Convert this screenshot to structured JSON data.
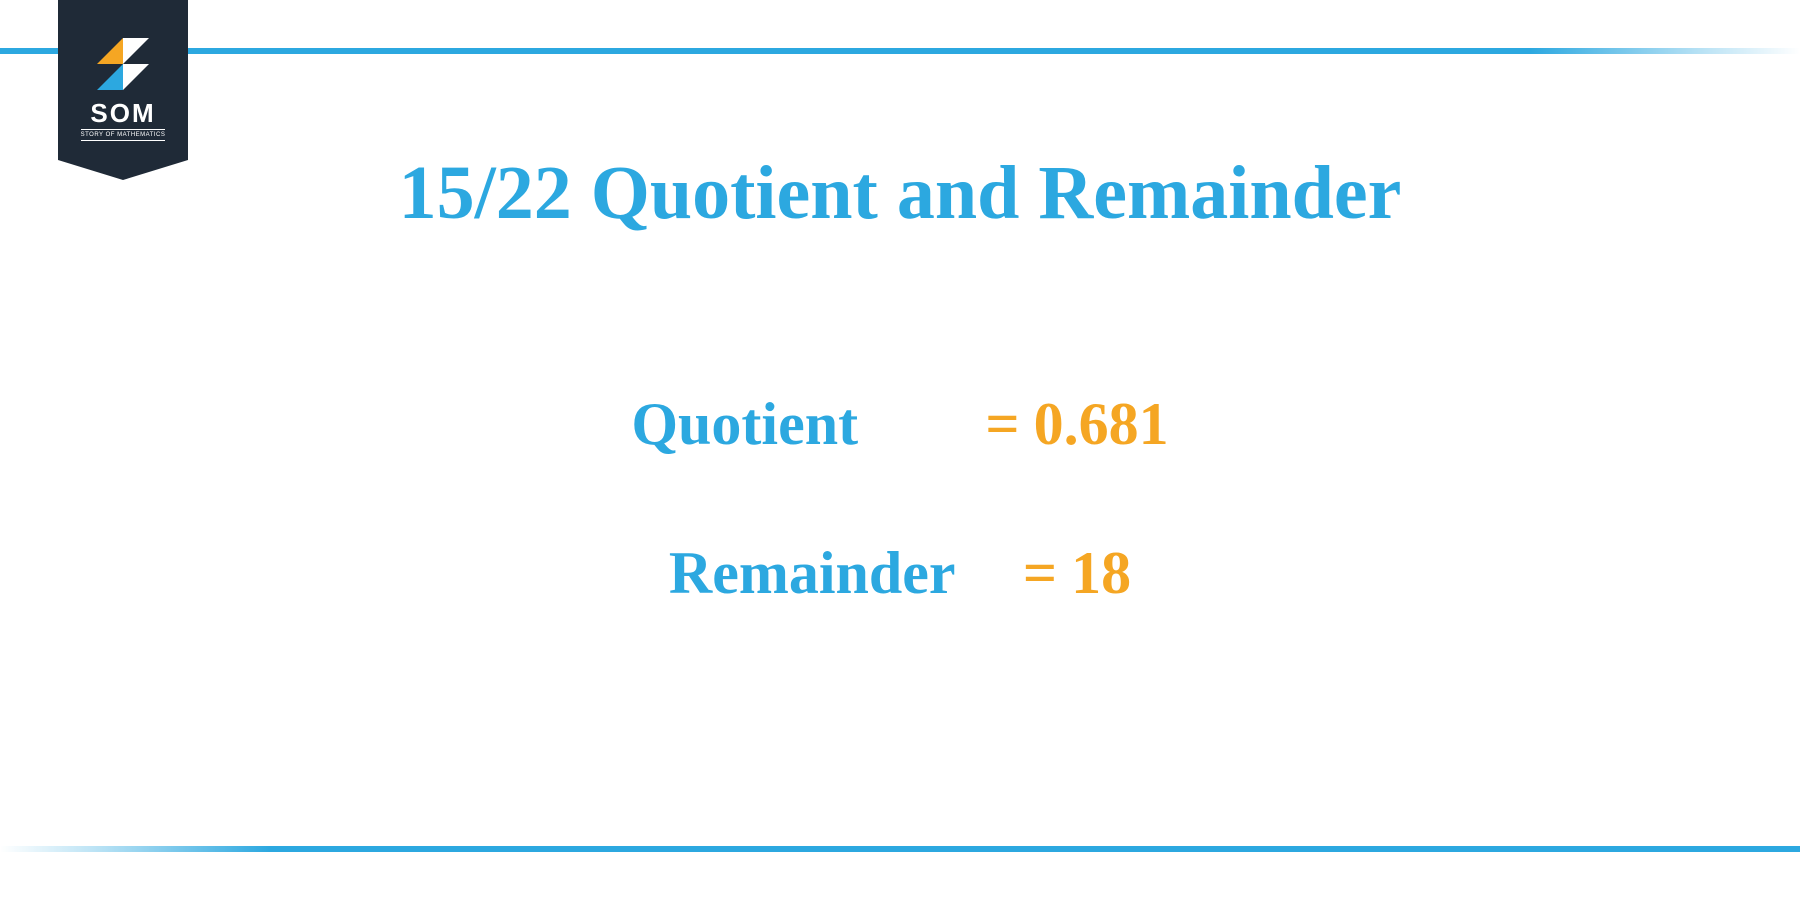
{
  "logo": {
    "name": "SOM",
    "tagline": "STORY OF MATHEMATICS"
  },
  "title": "15/22 Quotient and Remainder",
  "results": {
    "quotient": {
      "label": "Quotient",
      "value": "0.681"
    },
    "remainder": {
      "label": "Remainder",
      "value": "18"
    }
  },
  "colors": {
    "accent_blue": "#2ca8e0",
    "accent_gold": "#f5a623",
    "badge_bg": "#1f2a37",
    "background": "#ffffff"
  },
  "typography": {
    "title_fontsize": 76,
    "result_fontsize": 60,
    "font_family": "Georgia, serif"
  }
}
